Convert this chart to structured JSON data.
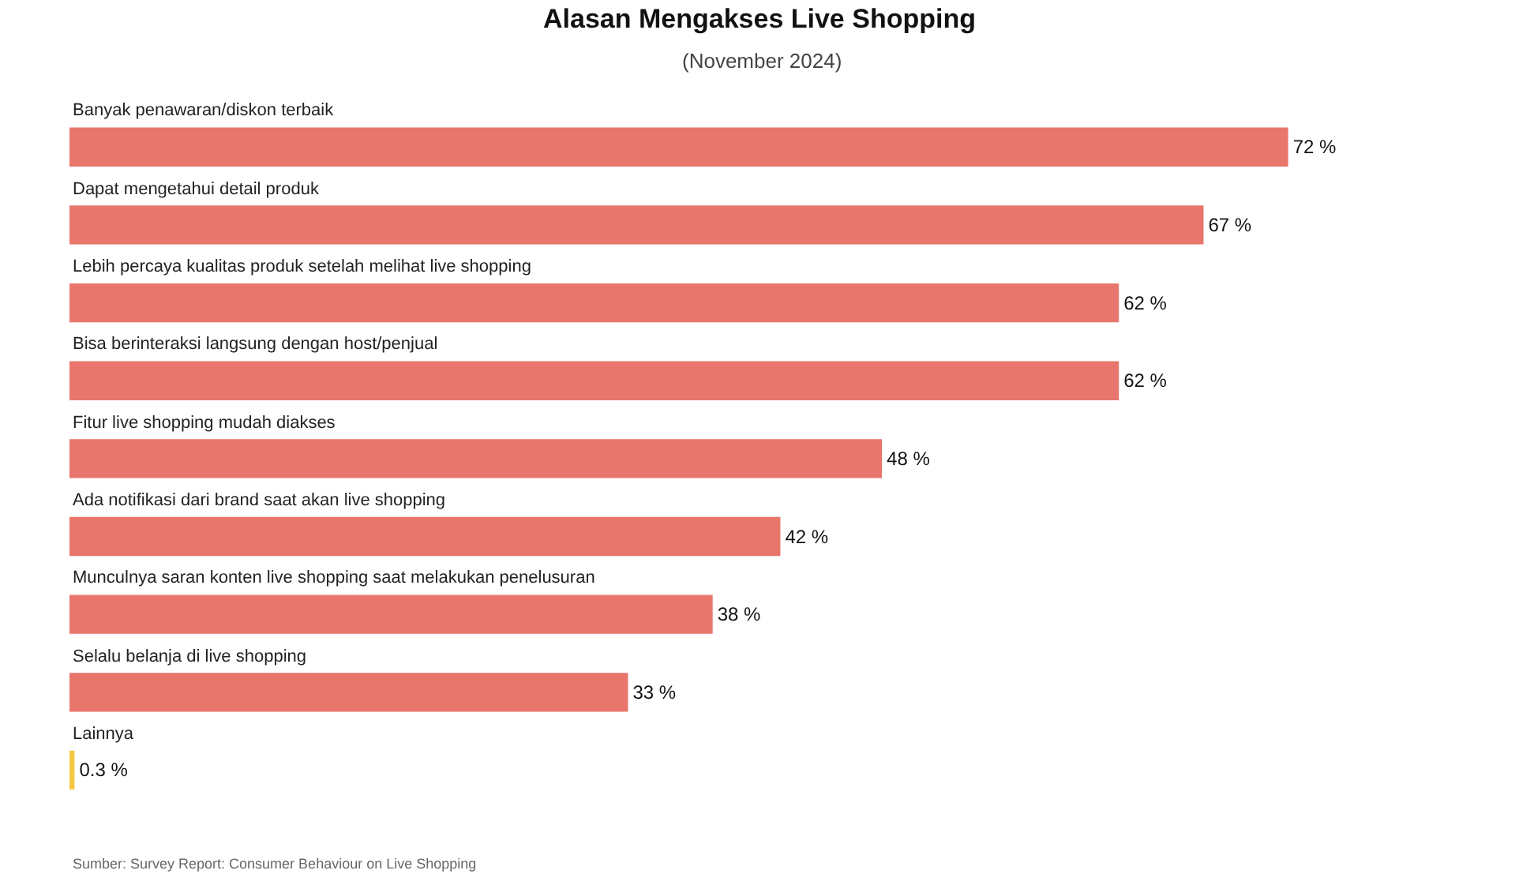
{
  "chart_data": {
    "type": "bar",
    "orientation": "horizontal",
    "title": "Alasan Mengakses Live Shopping",
    "subtitle": "(November 2024)",
    "categories": [
      "Banyak penawaran/diskon terbaik",
      "Dapat mengetahui detail produk",
      "Lebih percaya kualitas produk setelah melihat live shopping",
      "Bisa berinteraksi langsung dengan host/penjual",
      "Fitur live shopping mudah diakses",
      "Ada notifikasi dari brand saat akan live shopping",
      "Munculnya saran konten live shopping saat melakukan penelusuran",
      "Selalu belanja di live shopping",
      "Lainnya"
    ],
    "values": [
      72,
      67,
      62,
      62,
      48,
      42,
      38,
      33,
      0.3
    ],
    "colors": [
      "#e8766c",
      "#e8766c",
      "#e8766c",
      "#e8766c",
      "#e8766c",
      "#e8766c",
      "#e8766c",
      "#e8766c",
      "#f5c842"
    ],
    "value_labels": [
      "72 %",
      "67 %",
      "62 %",
      "62 %",
      "48 %",
      "42 %",
      "38 %",
      "33 %",
      "0.3 %"
    ],
    "grid": false,
    "annotations": [
      "Sumber: Survey Report: Consumer Behaviour on Live Shopping"
    ]
  }
}
